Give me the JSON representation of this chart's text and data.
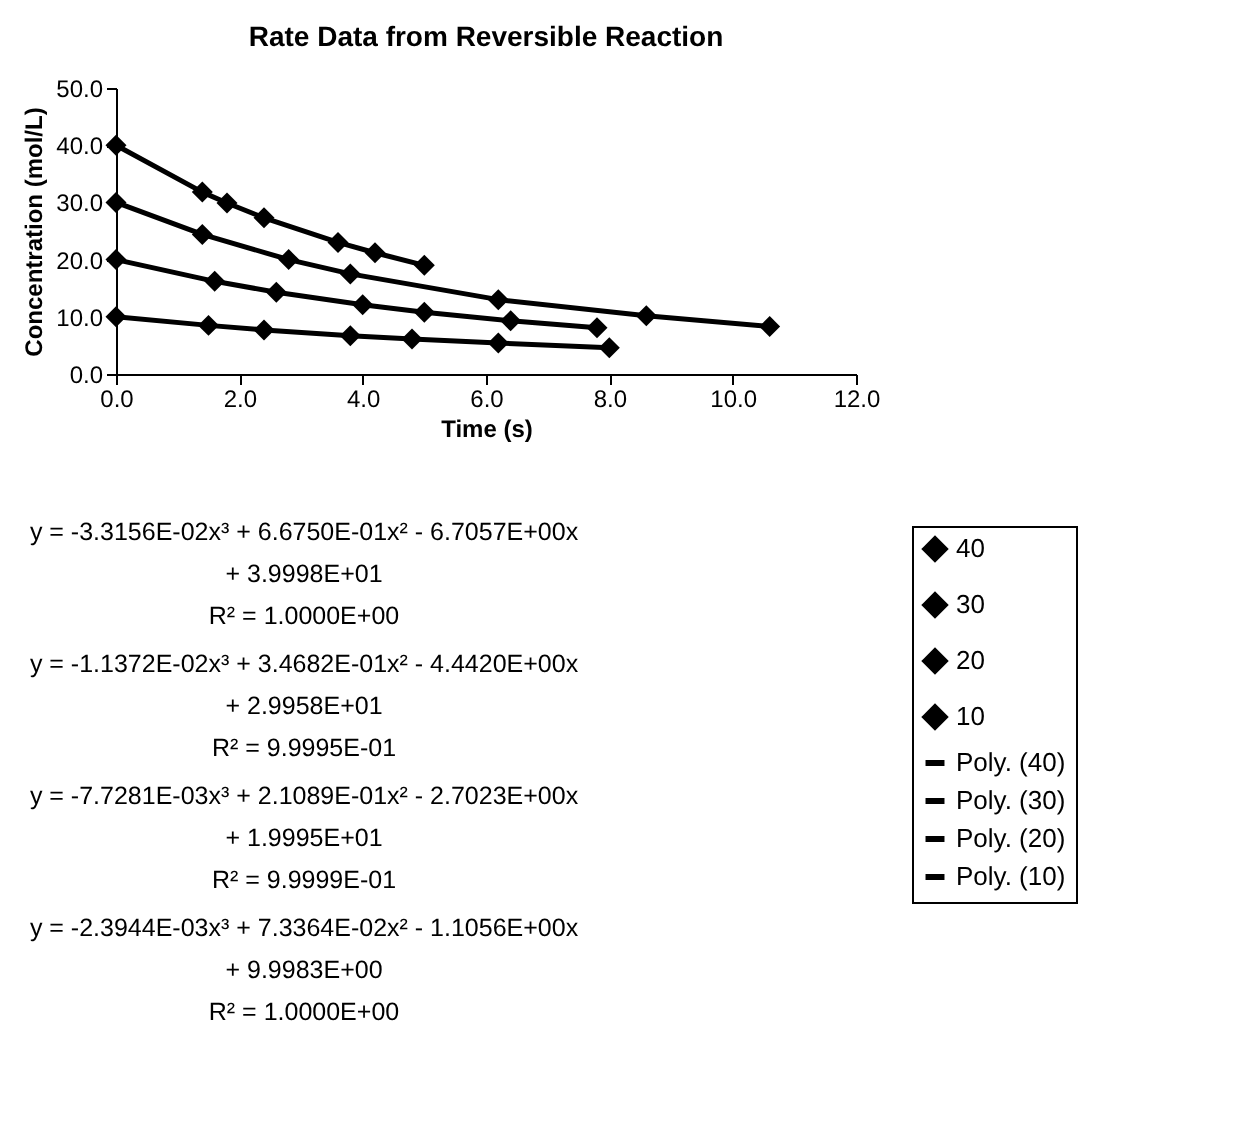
{
  "chart_data": {
    "type": "scatter",
    "title": "Rate Data from Reversible Reaction",
    "xlabel": "Time (s)",
    "ylabel": "Concentration (mol/L)",
    "xlim": [
      0,
      12
    ],
    "ylim": [
      0,
      50
    ],
    "xticks": [
      {
        "value": 0,
        "label": "0.0"
      },
      {
        "value": 2,
        "label": "2.0"
      },
      {
        "value": 4,
        "label": "4.0"
      },
      {
        "value": 6,
        "label": "6.0"
      },
      {
        "value": 8,
        "label": "8.0"
      },
      {
        "value": 10,
        "label": "10.0"
      },
      {
        "value": 12,
        "label": "12.0"
      }
    ],
    "yticks": [
      {
        "value": 0,
        "label": "0.0"
      },
      {
        "value": 10,
        "label": "10.0"
      },
      {
        "value": 20,
        "label": "20.0"
      },
      {
        "value": 30,
        "label": "30.0"
      },
      {
        "value": 40,
        "label": "40.0"
      },
      {
        "value": 50,
        "label": "50.0"
      }
    ],
    "grid": false,
    "legend": "right",
    "marker": "diamond",
    "line_style": "solid",
    "series": [
      {
        "name": "40",
        "color": "#000000",
        "x": [
          0,
          1.4,
          1.8,
          2.4,
          3.6,
          4.2,
          5.0
        ],
        "values": [
          40.0,
          31.8,
          29.9,
          27.3,
          23.0,
          21.2,
          19.0
        ]
      },
      {
        "name": "30",
        "color": "#000000",
        "x": [
          0,
          1.4,
          2.8,
          3.8,
          6.2,
          8.6,
          10.6
        ],
        "values": [
          30.0,
          24.4,
          20.0,
          17.5,
          13.0,
          10.2,
          8.3
        ]
      },
      {
        "name": "20",
        "color": "#000000",
        "x": [
          0,
          1.6,
          2.6,
          4.0,
          5.0,
          6.4,
          7.8
        ],
        "values": [
          20.0,
          16.2,
          14.3,
          12.1,
          10.8,
          9.3,
          8.1
        ]
      },
      {
        "name": "10",
        "color": "#000000",
        "x": [
          0,
          1.5,
          2.4,
          3.8,
          4.8,
          6.2,
          8.0
        ],
        "values": [
          10.0,
          8.5,
          7.7,
          6.7,
          6.1,
          5.4,
          4.6
        ]
      },
      {
        "name": "Poly. (40)",
        "type": "line",
        "marker": "none",
        "color": "#000000",
        "x": [
          0,
          1.4,
          1.8,
          2.4,
          3.6,
          4.2,
          5.0
        ],
        "values": [
          40.0,
          31.8,
          29.9,
          27.3,
          23.0,
          21.2,
          19.0
        ]
      },
      {
        "name": "Poly. (30)",
        "type": "line",
        "marker": "none",
        "color": "#000000",
        "x": [
          0,
          1.4,
          2.8,
          3.8,
          6.2,
          8.6,
          10.6
        ],
        "values": [
          30.0,
          24.4,
          20.0,
          17.5,
          13.0,
          10.2,
          8.3
        ]
      },
      {
        "name": "Poly. (20)",
        "type": "line",
        "marker": "none",
        "color": "#000000",
        "x": [
          0,
          1.6,
          2.6,
          4.0,
          5.0,
          6.4,
          7.8
        ],
        "values": [
          20.0,
          16.2,
          14.3,
          12.1,
          10.8,
          9.3,
          8.1
        ]
      },
      {
        "name": "Poly. (10)",
        "type": "line",
        "marker": "none",
        "color": "#000000",
        "x": [
          0,
          1.5,
          2.4,
          3.8,
          4.8,
          6.2,
          8.0
        ],
        "values": [
          10.0,
          8.5,
          7.7,
          6.7,
          6.1,
          5.4,
          4.6
        ]
      }
    ],
    "annotations": [
      "y = -3.3156E-02x³ + 6.6750E-01x² - 6.7057E+00x + 3.9998E+01",
      "R² = 1.0000E+00",
      "y = -1.1372E-02x³ + 3.4682E-01x² - 4.4420E+00x + 2.9958E+01",
      "R² = 9.9995E-01",
      "y = -7.7281E-03x³ + 2.1089E-01x² - 2.7023E+00x + 1.9995E+01",
      "R² = 9.9999E-01",
      "y = -2.3944E-03x³ + 7.3364E-02x² - 1.1056E+00x + 9.9983E+00",
      "R² = 1.0000E+00"
    ]
  }
}
